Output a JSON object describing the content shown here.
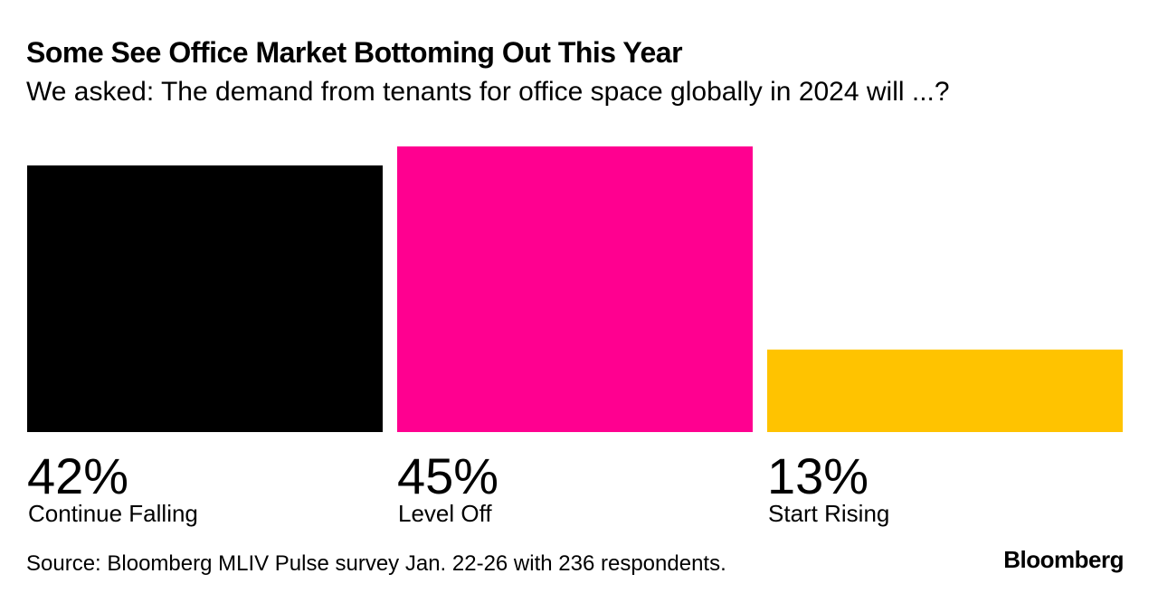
{
  "header": {
    "title": "Some See Office Market Bottoming Out This Year",
    "subtitle": "We asked: The demand from tenants for office space globally in 2024 will ...?"
  },
  "footer": {
    "source": "Source: Bloomberg MLIV Pulse survey Jan. 22-26 with 236 respondents.",
    "brand": "Bloomberg"
  },
  "chart_data": {
    "type": "bar",
    "title": "Some See Office Market Bottoming Out This Year",
    "subtitle": "We asked: The demand from tenants for office space globally in 2024 will ...?",
    "xlabel": "",
    "ylabel": "",
    "ylim": [
      0,
      45
    ],
    "grid": false,
    "categories": [
      "Continue Falling",
      "Level Off",
      "Start Rising"
    ],
    "values": [
      42,
      45,
      13
    ],
    "value_labels": [
      "42%",
      "45%",
      "13%"
    ],
    "colors": [
      "#000000",
      "#ff0090",
      "#ffc300"
    ]
  }
}
